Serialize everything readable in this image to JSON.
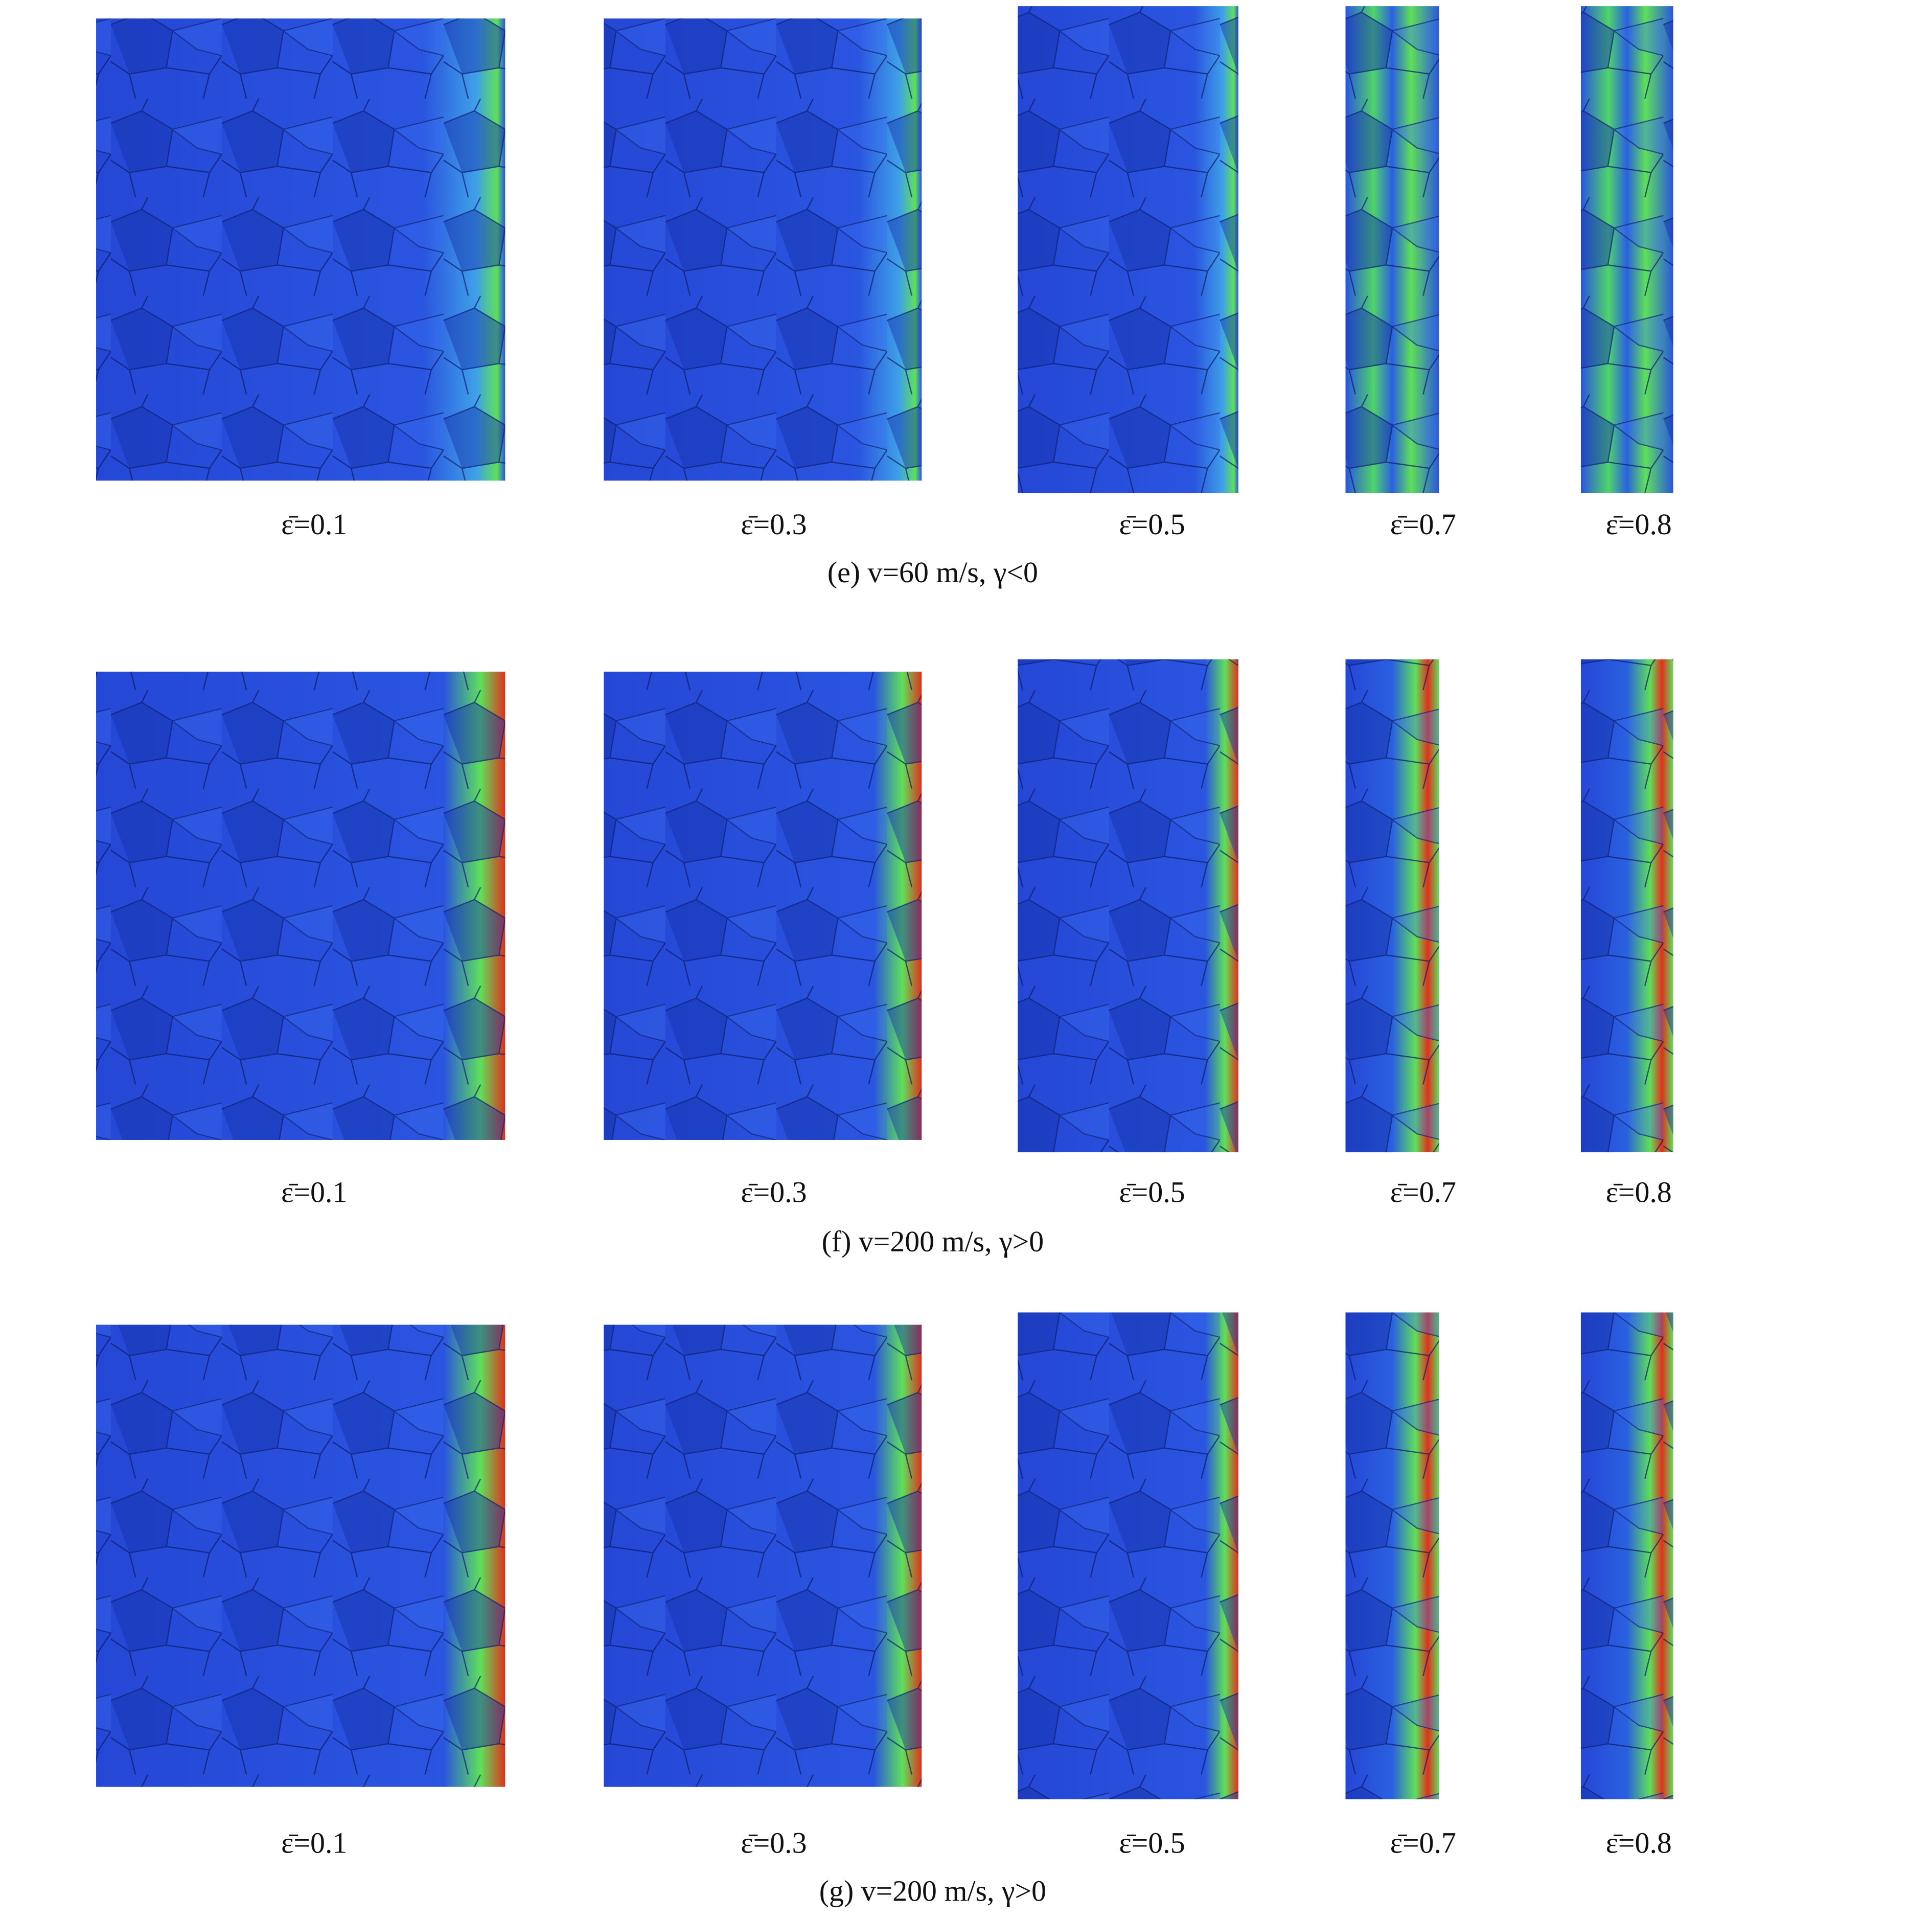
{
  "figure": {
    "rows": [
      {
        "labels": [
          "ε̄=0.1",
          "ε̄=0.3",
          "ε̄=0.5",
          "ε̄=0.7",
          "ε̄=0.8"
        ],
        "caption": "(e) v=60 m/s, γ<0"
      },
      {
        "labels": [
          "ε̄=0.1",
          "ε̄=0.3",
          "ε̄=0.5",
          "ε̄=0.7",
          "ε̄=0.8"
        ],
        "caption": "(f) v=200 m/s, γ>0"
      },
      {
        "labels": [
          "ε̄=0.1",
          "ε̄=0.3",
          "ε̄=0.5",
          "ε̄=0.7",
          "ε̄=0.8"
        ],
        "caption": "(g) v=200 m/s, γ>0"
      }
    ]
  }
}
